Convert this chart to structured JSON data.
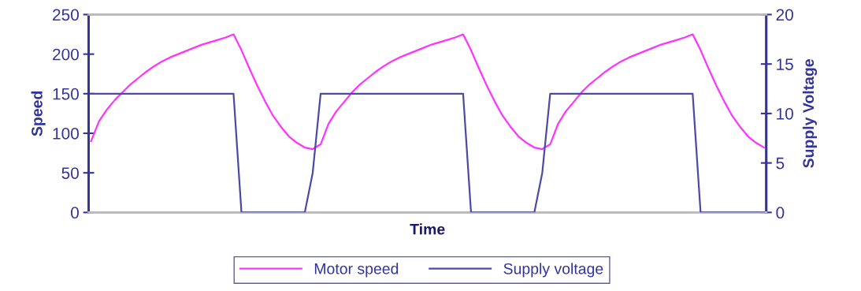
{
  "chart_data": {
    "type": "line",
    "xlabel": "Time",
    "ylabel": "Speed",
    "y2label": "Supply Voltage",
    "categories": [
      null,
      null,
      null,
      null,
      null,
      null,
      null,
      null,
      null,
      null,
      null,
      null,
      null,
      null,
      null,
      null,
      null,
      null,
      null,
      null,
      null,
      null,
      null,
      null,
      null,
      null,
      null,
      null,
      null,
      null,
      null,
      null,
      null,
      null,
      null,
      null,
      null,
      null,
      null,
      null,
      null,
      null,
      null,
      null,
      null,
      null,
      null,
      null,
      null,
      null,
      null,
      null,
      null,
      null,
      null,
      null,
      null,
      null,
      null,
      null,
      null,
      null,
      null,
      null,
      null,
      null,
      null,
      null,
      null,
      null,
      null,
      null,
      null,
      null,
      null,
      null,
      null,
      null,
      null,
      null,
      null,
      null,
      null,
      null,
      null,
      null
    ],
    "series": [
      {
        "name": "Motor speed",
        "color": "#ff33ff",
        "values": [
          90,
          115,
          130,
          142,
          152,
          162,
          170,
          178,
          185,
          191,
          196,
          200,
          204,
          208,
          212,
          215,
          218,
          221,
          225,
          205,
          182,
          160,
          140,
          122,
          108,
          96,
          88,
          82,
          80,
          86,
          112,
          128,
          140,
          152,
          162,
          170,
          178,
          185,
          191,
          196,
          200,
          204,
          208,
          212,
          215,
          218,
          221,
          225,
          205,
          182,
          160,
          140,
          122,
          108,
          96,
          88,
          82,
          80,
          86,
          112,
          128,
          140,
          152,
          162,
          170,
          178,
          185,
          191,
          196,
          200,
          204,
          208,
          212,
          215,
          218,
          221,
          225,
          205,
          182,
          160,
          140,
          122,
          108,
          96,
          88,
          82
        ]
      },
      {
        "name": "Supply voltage",
        "color": "#4b4ba6",
        "axis": "y2",
        "values": [
          12,
          12,
          12,
          12,
          12,
          12,
          12,
          12,
          12,
          12,
          12,
          12,
          12,
          12,
          12,
          12,
          12,
          12,
          12,
          0,
          0,
          0,
          0,
          0,
          0,
          0,
          0,
          0,
          4,
          12,
          12,
          12,
          12,
          12,
          12,
          12,
          12,
          12,
          12,
          12,
          12,
          12,
          12,
          12,
          12,
          12,
          12,
          12,
          0,
          0,
          0,
          0,
          0,
          0,
          0,
          0,
          0,
          4,
          12,
          12,
          12,
          12,
          12,
          12,
          12,
          12,
          12,
          12,
          12,
          12,
          12,
          12,
          12,
          12,
          12,
          12,
          12,
          0,
          0,
          0,
          0,
          0,
          0,
          0,
          0,
          0
        ]
      }
    ],
    "ylim": [
      0,
      250
    ],
    "yticks": [
      0,
      50,
      100,
      150,
      200,
      250
    ],
    "y2lim": [
      0,
      20
    ],
    "y2ticks": [
      0,
      5,
      10,
      15,
      20
    ],
    "tick_labels": "y",
    "grid": false,
    "legend": "bottom"
  }
}
